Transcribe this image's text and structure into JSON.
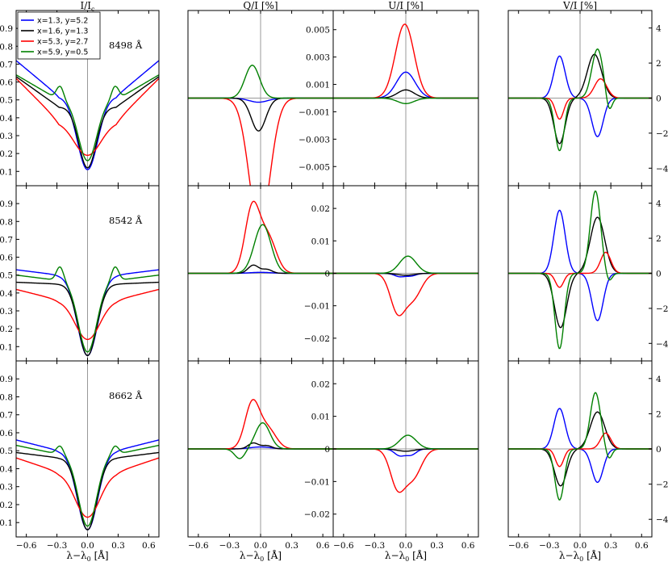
{
  "chart_data": {
    "type": "line",
    "figure": "Stokes profiles of three Ca II infrared lines",
    "columns": [
      {
        "key": "I",
        "title_main": "I/I",
        "title_sub": "c",
        "yticks": [
          0.1,
          0.2,
          0.3,
          0.4,
          0.5,
          0.6,
          0.7,
          0.8,
          0.9
        ],
        "ytick_side": "left"
      },
      {
        "key": "Q",
        "title_main": "Q/I [%]",
        "title_sub": "",
        "ytick_side": "none"
      },
      {
        "key": "U",
        "title_main": "U/I [%]",
        "title_sub": "",
        "ytick_side": "left"
      },
      {
        "key": "V",
        "title_main": "V/I [%]",
        "title_sub": "",
        "ytick_side": "right"
      }
    ],
    "rows": [
      {
        "line_label": "8498 Å",
        "U_yticks": [
          -0.005,
          -0.003,
          -0.001,
          0.001,
          0.003,
          0.005
        ],
        "U_ylim": [
          -0.0064,
          0.0064
        ],
        "V_yticks": [
          -4,
          -2,
          0,
          2,
          4
        ],
        "V_ylim": [
          -5,
          5
        ]
      },
      {
        "line_label": "8542 Å",
        "U_yticks": [
          -0.02,
          -0.01,
          0,
          0.01,
          0.02
        ],
        "U_ylim": [
          -0.027,
          0.027
        ],
        "V_yticks": [
          -4,
          -2,
          0,
          2,
          4
        ],
        "V_ylim": [
          -5,
          5
        ]
      },
      {
        "line_label": "8662 Å",
        "U_yticks": [
          -0.02,
          -0.01,
          0,
          0.01,
          0.02
        ],
        "U_ylim": [
          -0.027,
          0.027
        ],
        "V_yticks": [
          -4,
          -2,
          0,
          2,
          4
        ],
        "V_ylim": [
          -5,
          5
        ]
      }
    ],
    "xlim": [
      -0.7,
      0.7
    ],
    "xticks": [
      -0.6,
      -0.3,
      0.0,
      0.3,
      0.6
    ],
    "I_ylim": [
      0.02,
      1.0
    ],
    "xlabel": "λ−λ",
    "xlabel_sub": "0",
    "xlabel_unit": "[Å]",
    "series": [
      {
        "name": "x=1.3, y=5.2",
        "color": "#0000ff"
      },
      {
        "name": "x=1.6, y=1.3",
        "color": "#000000"
      },
      {
        "name": "x=5.3, y=2.7",
        "color": "#ff0000"
      },
      {
        "name": "x=5.9, y=0.5",
        "color": "#008000"
      }
    ],
    "profiles": {
      "I": [
        [
          {
            "base": 0.72,
            "edge_slope": 0.0,
            "min": 0.11,
            "w": 0.1,
            "shoulder": 0.52,
            "bump": 0.0,
            "bumpx": 0.25
          },
          {
            "base": 0.63,
            "edge_slope": 0.0,
            "min": 0.12,
            "w": 0.085,
            "shoulder": 0.46,
            "bump": 0.0,
            "bumpx": 0.25
          },
          {
            "base": 0.62,
            "edge_slope": 0.0,
            "min": 0.19,
            "w": 0.13,
            "shoulder": 0.38,
            "bump": 0.0,
            "bumpx": 0.25
          },
          {
            "base": 0.64,
            "edge_slope": 0.0,
            "min": 0.16,
            "w": 0.09,
            "shoulder": 0.5,
            "bump": 0.08,
            "bumpx": 0.27
          }
        ],
        [
          {
            "base": 0.53,
            "edge_slope": 0.0,
            "min": 0.05,
            "w": 0.1,
            "shoulder": 0.5,
            "bump": 0.0,
            "bumpx": 0.25
          },
          {
            "base": 0.46,
            "edge_slope": 0.0,
            "min": 0.05,
            "w": 0.09,
            "shoulder": 0.45,
            "bump": 0.0,
            "bumpx": 0.25
          },
          {
            "base": 0.42,
            "edge_slope": 0.0,
            "min": 0.14,
            "w": 0.12,
            "shoulder": 0.36,
            "bump": 0.0,
            "bumpx": 0.25
          },
          {
            "base": 0.5,
            "edge_slope": 0.0,
            "min": 0.07,
            "w": 0.09,
            "shoulder": 0.47,
            "bump": 0.08,
            "bumpx": 0.27
          }
        ],
        [
          {
            "base": 0.56,
            "edge_slope": 0.0,
            "min": 0.06,
            "w": 0.1,
            "shoulder": 0.5,
            "bump": 0.0,
            "bumpx": 0.25
          },
          {
            "base": 0.49,
            "edge_slope": 0.0,
            "min": 0.06,
            "w": 0.09,
            "shoulder": 0.46,
            "bump": 0.0,
            "bumpx": 0.25
          },
          {
            "base": 0.46,
            "edge_slope": 0.0,
            "min": 0.13,
            "w": 0.12,
            "shoulder": 0.38,
            "bump": 0.0,
            "bumpx": 0.25
          },
          {
            "base": 0.53,
            "edge_slope": 0.0,
            "min": 0.08,
            "w": 0.09,
            "shoulder": 0.48,
            "bump": 0.05,
            "bumpx": 0.27
          }
        ]
      ],
      "Q": [
        [
          {
            "comps": [
              [
                -0.02,
                0.09,
                -0.0003
              ]
            ]
          },
          {
            "comps": [
              [
                -0.02,
                0.07,
                -0.0024
              ]
            ]
          },
          {
            "comps": [
              [
                -0.01,
                0.1,
                -0.0095
              ]
            ]
          },
          {
            "comps": [
              [
                -0.08,
                0.07,
                0.0024
              ]
            ]
          }
        ],
        [
          {
            "comps": [
              [
                0.0,
                0.1,
                0.0003
              ]
            ]
          },
          {
            "comps": [
              [
                -0.07,
                0.05,
                0.0025
              ],
              [
                0.06,
                0.05,
                0.0012
              ]
            ]
          },
          {
            "comps": [
              [
                -0.08,
                0.07,
                0.02
              ],
              [
                0.07,
                0.08,
                0.011
              ]
            ]
          },
          {
            "comps": [
              [
                0.02,
                0.08,
                0.015
              ]
            ]
          }
        ],
        [
          {
            "comps": [
              [
                0.0,
                0.1,
                0.0006
              ]
            ]
          },
          {
            "comps": [
              [
                -0.07,
                0.05,
                0.0018
              ],
              [
                0.06,
                0.05,
                0.001
              ]
            ]
          },
          {
            "comps": [
              [
                -0.08,
                0.07,
                0.014
              ],
              [
                0.07,
                0.08,
                0.006
              ]
            ]
          },
          {
            "comps": [
              [
                0.02,
                0.07,
                0.008
              ],
              [
                -0.2,
                0.05,
                -0.003
              ]
            ]
          }
        ]
      ],
      "U": [
        [
          {
            "comps": [
              [
                0.0,
                0.09,
                0.0019
              ]
            ]
          },
          {
            "comps": [
              [
                0.0,
                0.08,
                0.0006
              ]
            ]
          },
          {
            "comps": [
              [
                -0.01,
                0.09,
                0.0054
              ]
            ]
          },
          {
            "comps": [
              [
                0.0,
                0.08,
                -0.0004
              ]
            ]
          }
        ],
        [
          {
            "comps": [
              [
                -0.06,
                0.05,
                -0.001
              ],
              [
                0.05,
                0.05,
                -0.0008
              ]
            ]
          },
          {
            "comps": [
              [
                0.0,
                0.08,
                -0.0006
              ]
            ]
          },
          {
            "comps": [
              [
                -0.08,
                0.07,
                -0.0115
              ],
              [
                0.07,
                0.08,
                -0.0075
              ]
            ]
          },
          {
            "comps": [
              [
                0.02,
                0.08,
                0.0053
              ]
            ]
          }
        ],
        [
          {
            "comps": [
              [
                -0.06,
                0.05,
                -0.002
              ],
              [
                0.05,
                0.05,
                -0.0018
              ]
            ]
          },
          {
            "comps": [
              [
                0.0,
                0.08,
                -0.0007
              ]
            ]
          },
          {
            "comps": [
              [
                -0.08,
                0.07,
                -0.0115
              ],
              [
                0.07,
                0.08,
                -0.0085
              ]
            ]
          },
          {
            "comps": [
              [
                0.02,
                0.08,
                0.0042
              ]
            ]
          }
        ]
      ],
      "V": [
        [
          {
            "comps": [
              [
                -0.2,
                0.055,
                2.4
              ],
              [
                0.17,
                0.055,
                -2.2
              ]
            ]
          },
          {
            "comps": [
              [
                -0.2,
                0.055,
                -2.6
              ],
              [
                0.14,
                0.07,
                2.5
              ]
            ]
          },
          {
            "comps": [
              [
                -0.2,
                0.04,
                -1.2
              ],
              [
                0.2,
                0.06,
                1.1
              ]
            ]
          },
          {
            "comps": [
              [
                -0.2,
                0.045,
                -3.0
              ],
              [
                0.17,
                0.055,
                2.8
              ],
              [
                0.28,
                0.03,
                -0.9
              ]
            ]
          }
        ],
        [
          {
            "comps": [
              [
                -0.2,
                0.055,
                3.6
              ],
              [
                0.17,
                0.055,
                -2.7
              ]
            ]
          },
          {
            "comps": [
              [
                -0.19,
                0.06,
                -3.1
              ],
              [
                0.17,
                0.07,
                3.2
              ]
            ]
          },
          {
            "comps": [
              [
                -0.2,
                0.04,
                -0.8
              ],
              [
                0.25,
                0.05,
                1.2
              ]
            ]
          },
          {
            "comps": [
              [
                -0.2,
                0.045,
                -4.3
              ],
              [
                0.15,
                0.05,
                4.7
              ],
              [
                0.28,
                0.03,
                -0.5
              ]
            ]
          }
        ],
        [
          {
            "comps": [
              [
                -0.2,
                0.055,
                2.3
              ],
              [
                0.17,
                0.055,
                -1.9
              ]
            ]
          },
          {
            "comps": [
              [
                -0.19,
                0.06,
                -2.1
              ],
              [
                0.17,
                0.07,
                2.1
              ]
            ]
          },
          {
            "comps": [
              [
                -0.2,
                0.04,
                -1.0
              ],
              [
                0.25,
                0.05,
                0.9
              ]
            ]
          },
          {
            "comps": [
              [
                -0.2,
                0.045,
                -2.9
              ],
              [
                0.15,
                0.05,
                3.2
              ],
              [
                0.28,
                0.03,
                -0.6
              ]
            ]
          }
        ]
      ]
    }
  }
}
